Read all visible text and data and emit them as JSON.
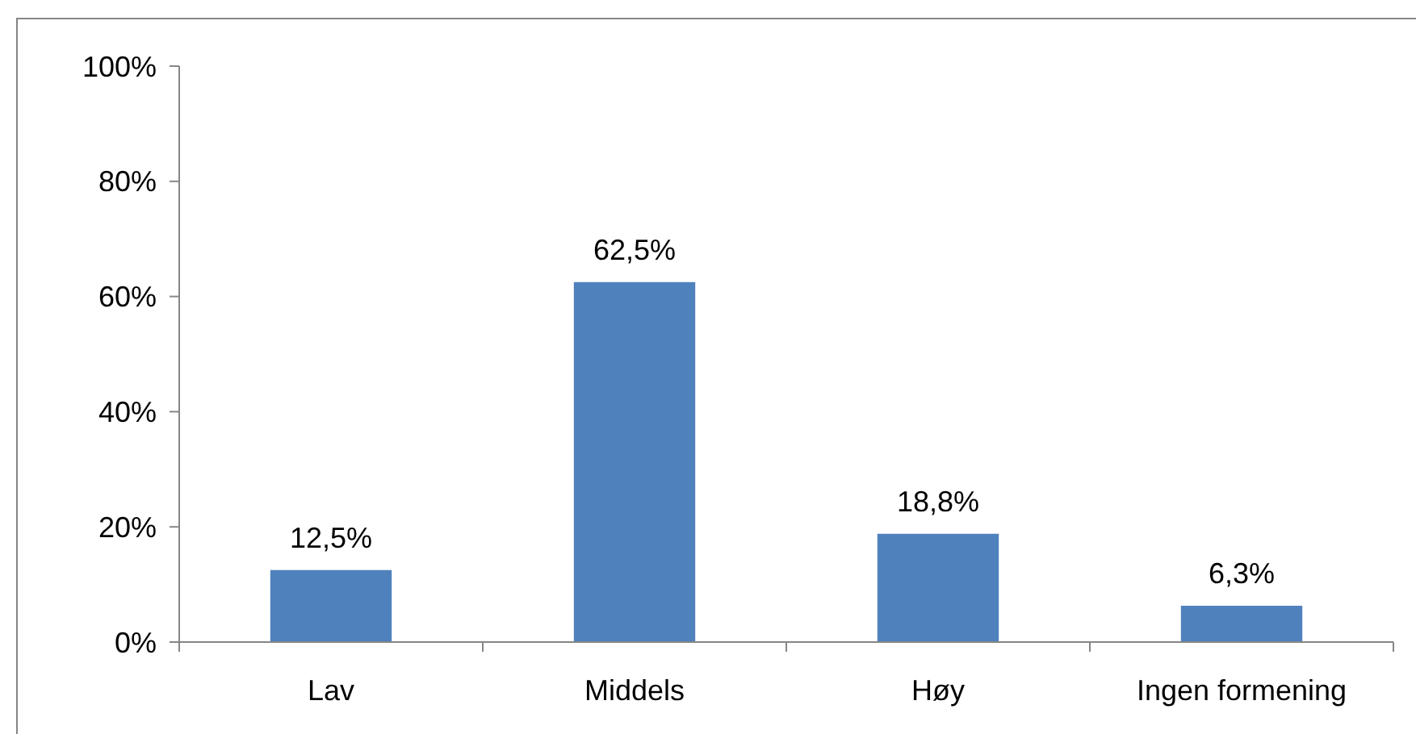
{
  "chart_data": {
    "type": "bar",
    "categories": [
      "Lav",
      "Middels",
      "Høy",
      "Ingen formening"
    ],
    "values": [
      12.5,
      62.5,
      18.8,
      6.3
    ],
    "color": "#4f81bd",
    "value_labels": [
      "12,5%",
      "62,5%",
      "18,8%",
      "6,3%"
    ],
    "ylim": [
      0,
      100
    ],
    "yticks": [
      {
        "value": 0,
        "label": "0%"
      },
      {
        "value": 20,
        "label": "20%"
      },
      {
        "value": 40,
        "label": "40%"
      },
      {
        "value": 60,
        "label": "60%"
      },
      {
        "value": 80,
        "label": "80%"
      },
      {
        "value": 100,
        "label": "100%"
      }
    ]
  }
}
